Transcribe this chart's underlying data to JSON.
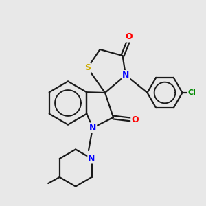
{
  "bg_color": "#e8e8e8",
  "atom_colors": {
    "N": "#0000ff",
    "O": "#ff0000",
    "S": "#ccaa00",
    "Cl": "#008800"
  },
  "bond_color": "#1a1a1a",
  "bond_width": 1.6,
  "fig_w": 3.0,
  "fig_h": 3.0,
  "dpi": 100
}
